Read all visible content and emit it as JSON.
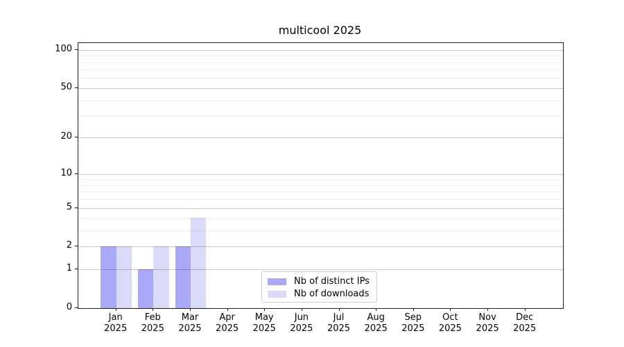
{
  "chart_data": {
    "type": "bar",
    "title": "multicool 2025",
    "categories": [
      "Jan",
      "Feb",
      "Mar",
      "Apr",
      "May",
      "Jun",
      "Jul",
      "Aug",
      "Sep",
      "Oct",
      "Nov",
      "Dec"
    ],
    "category_year": "2025",
    "series": [
      {
        "name": "Nb of distinct IPs",
        "color": "#a9a9f7",
        "values": [
          2,
          1,
          2,
          0,
          0,
          0,
          0,
          0,
          0,
          0,
          0,
          0
        ]
      },
      {
        "name": "Nb of downloads",
        "color": "#dadaf9",
        "values": [
          2,
          2,
          4,
          0,
          0,
          0,
          0,
          0,
          0,
          0,
          0,
          0
        ]
      }
    ],
    "xlabel": "",
    "ylabel": "",
    "yscale": "log1p",
    "ylim": [
      0,
      113
    ],
    "yticks": [
      0,
      1,
      2,
      5,
      10,
      20,
      50,
      100
    ],
    "yticks_minor": [
      3,
      4,
      6,
      7,
      8,
      9,
      30,
      40,
      60,
      70,
      80,
      90
    ],
    "grid": "y major+minor",
    "legend_position": "lower center"
  }
}
